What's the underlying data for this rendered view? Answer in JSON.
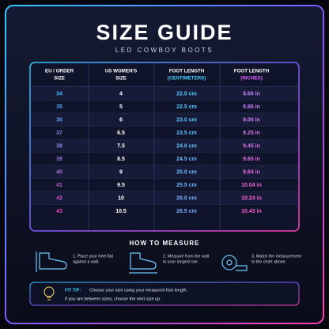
{
  "header": {
    "title": "SIZE GUIDE",
    "subtitle": "LED COWBOY BOOTS"
  },
  "table": {
    "columns": [
      [
        "EU / ORDER",
        "SIZE"
      ],
      [
        "US WOMEN'S",
        "SIZE"
      ],
      [
        "FOOT LENGTH",
        "(CENTIMETERS)"
      ],
      [
        "FOOT LENGTH",
        "(INCHES)"
      ]
    ],
    "rows": [
      [
        "34",
        "4",
        "22.0 cm",
        "8.66 in"
      ],
      [
        "35",
        "5",
        "22.5 cm",
        "8.86 in"
      ],
      [
        "36",
        "6",
        "23.0 cm",
        "9.06 in"
      ],
      [
        "37",
        "6.5",
        "23.5 cm",
        "9.25 in"
      ],
      [
        "38",
        "7.5",
        "24.0 cm",
        "9.45 in"
      ],
      [
        "39",
        "8.5",
        "24.5 cm",
        "9.65 in"
      ],
      [
        "40",
        "9",
        "25.0 cm",
        "9.84 in"
      ],
      [
        "41",
        "9.5",
        "25.5 cm",
        "10.04 in"
      ],
      [
        "42",
        "10",
        "26.0 cm",
        "10.24 in"
      ],
      [
        "43",
        "10.5",
        "26.5 cm",
        "10.43 in"
      ]
    ]
  },
  "how_to_measure": {
    "title": "HOW TO MEASURE",
    "steps": [
      [
        "1. Place your heel flat",
        "against a wall."
      ],
      [
        "2. Measure from the wall",
        "to your longest toe."
      ],
      [
        "3. Match the measurement",
        "to the chart above."
      ]
    ]
  },
  "fit_tip": {
    "label": "FIT TIP:",
    "lines": [
      "Choose your size using your measured foot length.",
      "If you are between sizes, choose the next size up."
    ]
  }
}
